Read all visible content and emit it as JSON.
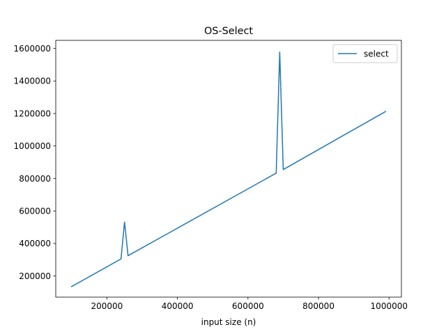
{
  "chart_data": {
    "type": "line",
    "title": "OS-Select",
    "xlabel": "input size (n)",
    "ylabel": "",
    "xlim": [
      55000,
      1035000
    ],
    "ylim": [
      70000,
      1650000
    ],
    "xticks": [
      200000,
      400000,
      600000,
      800000,
      1000000
    ],
    "yticks": [
      200000,
      400000,
      600000,
      800000,
      1000000,
      1200000,
      1400000,
      1600000
    ],
    "grid": false,
    "legend": "top-right",
    "series": [
      {
        "name": "select",
        "color": "#1f77b4",
        "points": [
          [
            100000,
            135000
          ],
          [
            240000,
            305000
          ],
          [
            250000,
            532000
          ],
          [
            260000,
            325000
          ],
          [
            680000,
            833000
          ],
          [
            690000,
            1578000
          ],
          [
            700000,
            855000
          ],
          [
            990000,
            1212000
          ]
        ]
      }
    ]
  }
}
